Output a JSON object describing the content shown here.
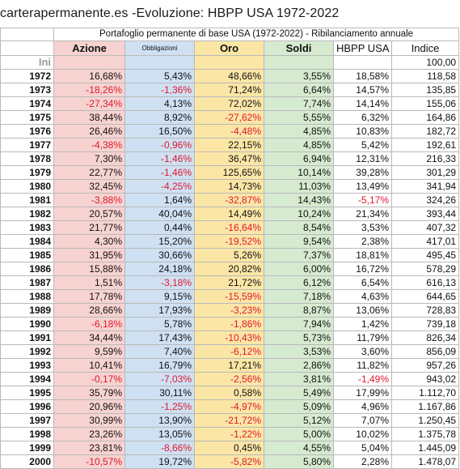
{
  "title": "carterapermanente.es -Evoluzione: HBPP USA 1972-2022",
  "table": {
    "caption": "Portafoglio permanente di base USA (1972-2022) - Ribilanciamento annuale",
    "headers": {
      "azione": "Azione",
      "obbligazioni": "Obbligazioni",
      "oro": "Oro",
      "soldi": "Soldi",
      "hbpp": "HBPP USA",
      "indice": "Indice"
    },
    "ini_label": "Ini",
    "ini_indice": "100,00",
    "rows": [
      {
        "year": "1972",
        "az": "16,68%",
        "ob": "5,43%",
        "or": "48,66%",
        "so": "3,55%",
        "hb": "18,58%",
        "ix": "118,58"
      },
      {
        "year": "1973",
        "az": "-18,26%",
        "ob": "-1,36%",
        "or": "71,24%",
        "so": "6,64%",
        "hb": "14,57%",
        "ix": "135,85"
      },
      {
        "year": "1974",
        "az": "-27,34%",
        "ob": "4,13%",
        "or": "72,02%",
        "so": "7,74%",
        "hb": "14,14%",
        "ix": "155,06"
      },
      {
        "year": "1975",
        "az": "38,44%",
        "ob": "8,92%",
        "or": "-27,62%",
        "so": "5,55%",
        "hb": "6,32%",
        "ix": "164,86"
      },
      {
        "year": "1976",
        "az": "26,46%",
        "ob": "16,50%",
        "or": "-4,48%",
        "so": "4,85%",
        "hb": "10,83%",
        "ix": "182,72"
      },
      {
        "year": "1977",
        "az": "-4,38%",
        "ob": "-0,96%",
        "or": "22,15%",
        "so": "4,85%",
        "hb": "5,42%",
        "ix": "192,61"
      },
      {
        "year": "1978",
        "az": "7,30%",
        "ob": "-1,46%",
        "or": "36,47%",
        "so": "6,94%",
        "hb": "12,31%",
        "ix": "216,33"
      },
      {
        "year": "1979",
        "az": "22,77%",
        "ob": "-1,46%",
        "or": "125,65%",
        "so": "10,14%",
        "hb": "39,28%",
        "ix": "301,29"
      },
      {
        "year": "1980",
        "az": "32,45%",
        "ob": "-4,25%",
        "or": "14,73%",
        "so": "11,03%",
        "hb": "13,49%",
        "ix": "341,94"
      },
      {
        "year": "1981",
        "az": "-3,88%",
        "ob": "1,64%",
        "or": "-32,87%",
        "so": "14,43%",
        "hb": "-5,17%",
        "ix": "324,26"
      },
      {
        "year": "1982",
        "az": "20,57%",
        "ob": "40,04%",
        "or": "14,49%",
        "so": "10,24%",
        "hb": "21,34%",
        "ix": "393,44"
      },
      {
        "year": "1983",
        "az": "21,77%",
        "ob": "0,44%",
        "or": "-16,64%",
        "so": "8,54%",
        "hb": "3,53%",
        "ix": "407,32"
      },
      {
        "year": "1984",
        "az": "4,30%",
        "ob": "15,20%",
        "or": "-19,52%",
        "so": "9,54%",
        "hb": "2,38%",
        "ix": "417,01"
      },
      {
        "year": "1985",
        "az": "31,95%",
        "ob": "30,66%",
        "or": "5,26%",
        "so": "7,37%",
        "hb": "18,81%",
        "ix": "495,45"
      },
      {
        "year": "1986",
        "az": "15,88%",
        "ob": "24,18%",
        "or": "20,82%",
        "so": "6,00%",
        "hb": "16,72%",
        "ix": "578,29"
      },
      {
        "year": "1987",
        "az": "1,51%",
        "ob": "-3,18%",
        "or": "21,72%",
        "so": "6,12%",
        "hb": "6,54%",
        "ix": "616,13"
      },
      {
        "year": "1988",
        "az": "17,78%",
        "ob": "9,15%",
        "or": "-15,59%",
        "so": "7,18%",
        "hb": "4,63%",
        "ix": "644,65"
      },
      {
        "year": "1989",
        "az": "28,66%",
        "ob": "17,93%",
        "or": "-3,23%",
        "so": "8,87%",
        "hb": "13,06%",
        "ix": "728,83"
      },
      {
        "year": "1990",
        "az": "-6,18%",
        "ob": "5,78%",
        "or": "-1,86%",
        "so": "7,94%",
        "hb": "1,42%",
        "ix": "739,18"
      },
      {
        "year": "1991",
        "az": "34,44%",
        "ob": "17,43%",
        "or": "-10,43%",
        "so": "5,73%",
        "hb": "11,79%",
        "ix": "826,34"
      },
      {
        "year": "1992",
        "az": "9,59%",
        "ob": "7,40%",
        "or": "-6,12%",
        "so": "3,53%",
        "hb": "3,60%",
        "ix": "856,09"
      },
      {
        "year": "1993",
        "az": "10,41%",
        "ob": "16,79%",
        "or": "17,21%",
        "so": "2,86%",
        "hb": "11,82%",
        "ix": "957,26"
      },
      {
        "year": "1994",
        "az": "-0,17%",
        "ob": "-7,03%",
        "or": "-2,56%",
        "so": "3,81%",
        "hb": "-1,49%",
        "ix": "943,02"
      },
      {
        "year": "1995",
        "az": "35,79%",
        "ob": "30,11%",
        "or": "0,58%",
        "so": "5,49%",
        "hb": "17,99%",
        "ix": "1.112,70"
      },
      {
        "year": "1996",
        "az": "20,96%",
        "ob": "-1,25%",
        "or": "-4,97%",
        "so": "5,09%",
        "hb": "4,96%",
        "ix": "1.167,86"
      },
      {
        "year": "1997",
        "az": "30,99%",
        "ob": "13,90%",
        "or": "-21,72%",
        "so": "5,12%",
        "hb": "7,07%",
        "ix": "1.250,45"
      },
      {
        "year": "1998",
        "az": "23,26%",
        "ob": "13,05%",
        "or": "-1,22%",
        "so": "5,00%",
        "hb": "10,02%",
        "ix": "1.375,78"
      },
      {
        "year": "1999",
        "az": "23,81%",
        "ob": "-8,66%",
        "or": "0,45%",
        "so": "4,55%",
        "hb": "5,04%",
        "ix": "1.445,09"
      },
      {
        "year": "2000",
        "az": "-10,57%",
        "ob": "19,72%",
        "or": "-5,82%",
        "so": "5,80%",
        "hb": "2,28%",
        "ix": "1.478,07"
      }
    ]
  },
  "colors": {
    "azione_bg": "#f6d3d0",
    "obbligazioni_bg": "#cfe0f3",
    "oro_bg": "#fbe6a6",
    "soldi_bg": "#d6ead0",
    "negative_text": "#e0182d"
  }
}
